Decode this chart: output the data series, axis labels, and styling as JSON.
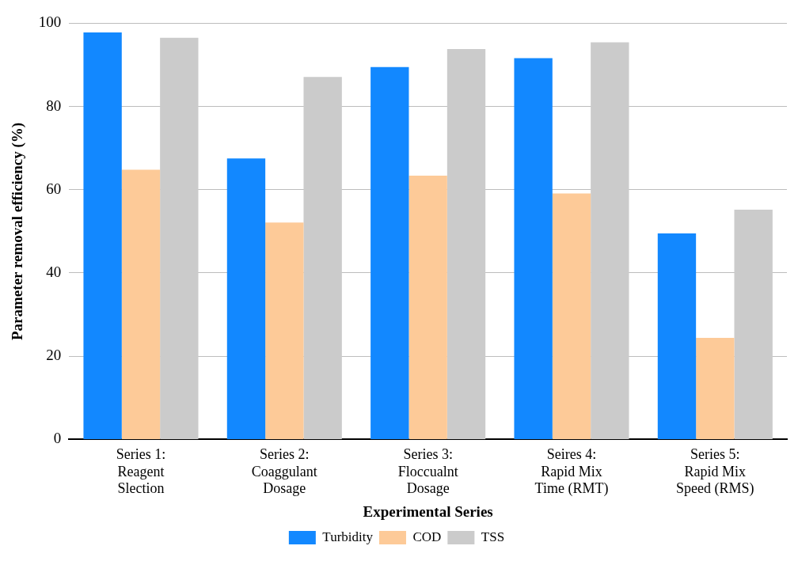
{
  "chart_data": {
    "type": "bar",
    "xlabel": "Experimental Series",
    "ylabel": "Parameter removal efficiency (%)",
    "categories": [
      "Series 1: Reagent Slection",
      "Series 2: Coaggulant Dosage",
      "Series 3: Floccualnt Dosage",
      "Seires 4: Rapid Mix Time (RMT)",
      "Series 5: Rapid Mix Speed (RMS)"
    ],
    "series": [
      {
        "name": "Turbidity",
        "color": "#1288ff",
        "values": [
          97.8,
          67.5,
          89.5,
          91.6,
          49.5
        ]
      },
      {
        "name": "COD",
        "color": "#fdca98",
        "values": [
          64.8,
          52.1,
          63.4,
          59.1,
          24.4
        ]
      },
      {
        "name": "TSS",
        "color": "#cbcbcb",
        "values": [
          96.5,
          87.1,
          93.8,
          95.4,
          55.2
        ]
      }
    ],
    "ylim": [
      0,
      100
    ],
    "yticks": [
      0,
      20,
      40,
      60,
      80,
      100
    ],
    "grid": "y",
    "legend": "bottom"
  }
}
